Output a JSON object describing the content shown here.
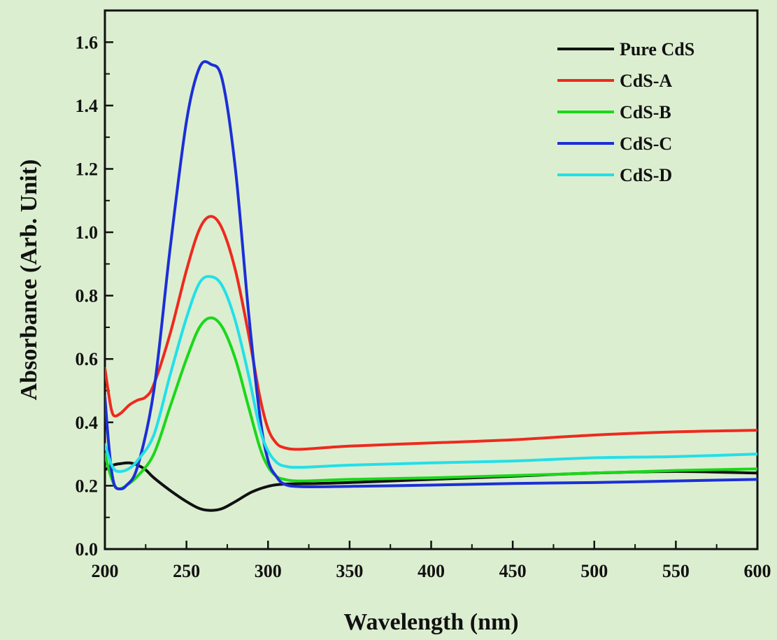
{
  "chart_data": {
    "type": "line",
    "title": "",
    "xlabel": "Wavelength (nm)",
    "ylabel": "Absorbance (Arb. Unit)",
    "xlim": [
      200,
      600
    ],
    "ylim": [
      0.0,
      1.7
    ],
    "x_ticks": [
      200,
      250,
      300,
      350,
      400,
      450,
      500,
      550,
      600
    ],
    "y_ticks": [
      0.0,
      0.2,
      0.4,
      0.6,
      0.8,
      1.0,
      1.2,
      1.4,
      1.6
    ],
    "x_tick_labels": [
      "200",
      "250",
      "300",
      "350",
      "400",
      "450",
      "500",
      "550",
      "600"
    ],
    "y_tick_labels": [
      "0.0",
      "0.2",
      "0.4",
      "0.6",
      "0.8",
      "1.0",
      "1.2",
      "1.4",
      "1.6"
    ],
    "grid": false,
    "legend_position": "top-right",
    "series": [
      {
        "name": "Pure CdS",
        "color": "#111111",
        "points": [
          [
            200,
            0.25
          ],
          [
            205,
            0.265
          ],
          [
            210,
            0.27
          ],
          [
            215,
            0.272
          ],
          [
            220,
            0.265
          ],
          [
            225,
            0.25
          ],
          [
            230,
            0.225
          ],
          [
            240,
            0.185
          ],
          [
            250,
            0.15
          ],
          [
            258,
            0.128
          ],
          [
            265,
            0.122
          ],
          [
            272,
            0.128
          ],
          [
            280,
            0.15
          ],
          [
            290,
            0.18
          ],
          [
            300,
            0.198
          ],
          [
            310,
            0.205
          ],
          [
            330,
            0.207
          ],
          [
            350,
            0.21
          ],
          [
            400,
            0.22
          ],
          [
            450,
            0.23
          ],
          [
            500,
            0.24
          ],
          [
            550,
            0.245
          ],
          [
            600,
            0.24
          ]
        ]
      },
      {
        "name": "CdS-A",
        "color": "#ee2a1e",
        "points": [
          [
            200,
            0.57
          ],
          [
            202,
            0.5
          ],
          [
            204,
            0.44
          ],
          [
            206,
            0.42
          ],
          [
            210,
            0.43
          ],
          [
            215,
            0.455
          ],
          [
            220,
            0.47
          ],
          [
            225,
            0.48
          ],
          [
            230,
            0.52
          ],
          [
            240,
            0.68
          ],
          [
            250,
            0.88
          ],
          [
            258,
            1.01
          ],
          [
            265,
            1.05
          ],
          [
            272,
            1.01
          ],
          [
            280,
            0.88
          ],
          [
            288,
            0.68
          ],
          [
            295,
            0.48
          ],
          [
            300,
            0.38
          ],
          [
            305,
            0.335
          ],
          [
            310,
            0.32
          ],
          [
            320,
            0.315
          ],
          [
            350,
            0.325
          ],
          [
            400,
            0.335
          ],
          [
            450,
            0.345
          ],
          [
            500,
            0.36
          ],
          [
            550,
            0.37
          ],
          [
            600,
            0.375
          ]
        ]
      },
      {
        "name": "CdS-B",
        "color": "#1ad81a",
        "points": [
          [
            200,
            0.3
          ],
          [
            203,
            0.24
          ],
          [
            206,
            0.2
          ],
          [
            209,
            0.19
          ],
          [
            213,
            0.2
          ],
          [
            220,
            0.23
          ],
          [
            230,
            0.3
          ],
          [
            240,
            0.45
          ],
          [
            250,
            0.6
          ],
          [
            258,
            0.7
          ],
          [
            265,
            0.73
          ],
          [
            272,
            0.7
          ],
          [
            280,
            0.6
          ],
          [
            288,
            0.45
          ],
          [
            295,
            0.32
          ],
          [
            300,
            0.26
          ],
          [
            305,
            0.23
          ],
          [
            310,
            0.22
          ],
          [
            320,
            0.215
          ],
          [
            350,
            0.22
          ],
          [
            400,
            0.225
          ],
          [
            450,
            0.232
          ],
          [
            500,
            0.24
          ],
          [
            550,
            0.248
          ],
          [
            600,
            0.253
          ]
        ]
      },
      {
        "name": "CdS-C",
        "color": "#1b2fd8",
        "points": [
          [
            200,
            0.48
          ],
          [
            202,
            0.35
          ],
          [
            204,
            0.25
          ],
          [
            206,
            0.2
          ],
          [
            209,
            0.19
          ],
          [
            213,
            0.2
          ],
          [
            220,
            0.26
          ],
          [
            230,
            0.5
          ],
          [
            240,
            0.95
          ],
          [
            250,
            1.35
          ],
          [
            258,
            1.52
          ],
          [
            265,
            1.53
          ],
          [
            272,
            1.48
          ],
          [
            280,
            1.2
          ],
          [
            288,
            0.75
          ],
          [
            295,
            0.42
          ],
          [
            300,
            0.28
          ],
          [
            305,
            0.23
          ],
          [
            310,
            0.205
          ],
          [
            320,
            0.197
          ],
          [
            350,
            0.198
          ],
          [
            400,
            0.202
          ],
          [
            450,
            0.207
          ],
          [
            500,
            0.21
          ],
          [
            550,
            0.215
          ],
          [
            600,
            0.22
          ]
        ]
      },
      {
        "name": "CdS-D",
        "color": "#22e0e8",
        "points": [
          [
            200,
            0.33
          ],
          [
            203,
            0.28
          ],
          [
            206,
            0.25
          ],
          [
            210,
            0.245
          ],
          [
            215,
            0.255
          ],
          [
            220,
            0.28
          ],
          [
            230,
            0.36
          ],
          [
            240,
            0.55
          ],
          [
            250,
            0.73
          ],
          [
            258,
            0.84
          ],
          [
            265,
            0.86
          ],
          [
            272,
            0.83
          ],
          [
            280,
            0.72
          ],
          [
            288,
            0.55
          ],
          [
            295,
            0.38
          ],
          [
            300,
            0.31
          ],
          [
            305,
            0.275
          ],
          [
            310,
            0.262
          ],
          [
            320,
            0.258
          ],
          [
            350,
            0.265
          ],
          [
            400,
            0.272
          ],
          [
            450,
            0.278
          ],
          [
            500,
            0.288
          ],
          [
            550,
            0.292
          ],
          [
            600,
            0.3
          ]
        ]
      }
    ]
  }
}
